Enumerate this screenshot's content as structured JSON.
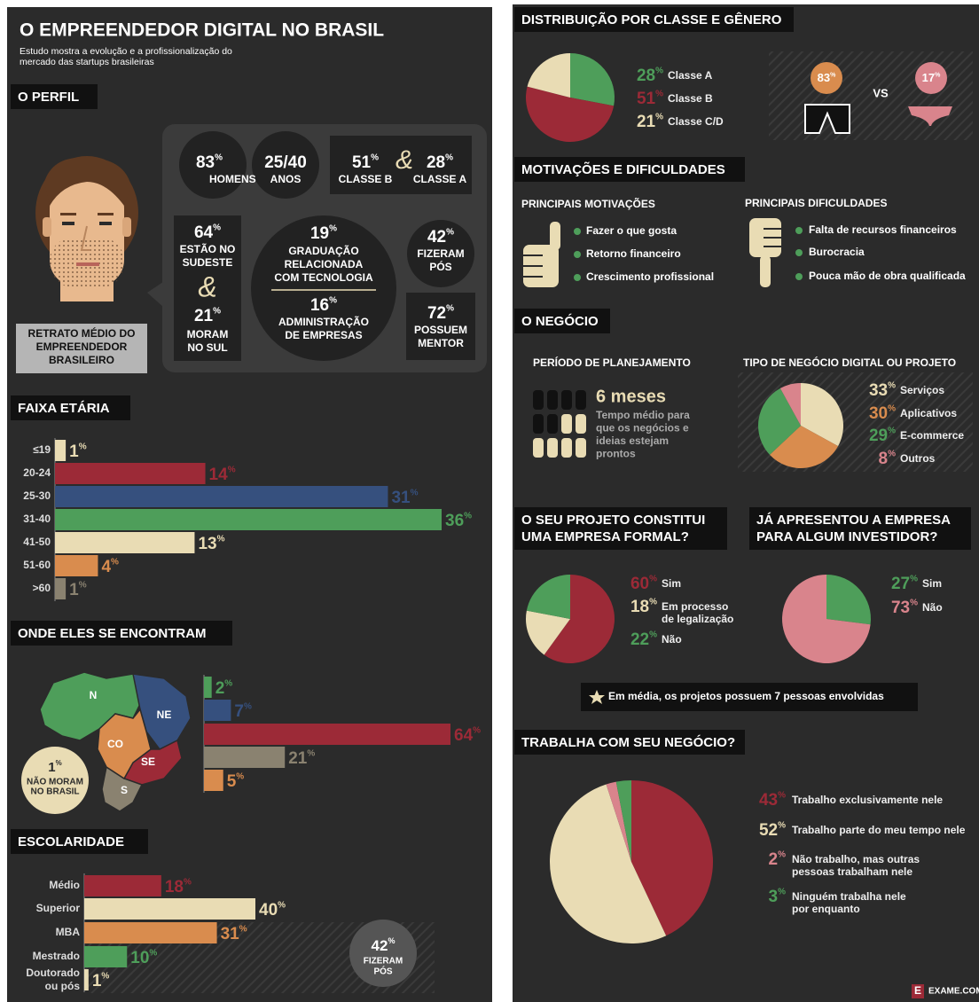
{
  "percent_sign": "%",
  "title": "O EMPREENDEDOR DIGITAL NO BRASIL",
  "subtitle": [
    "Estudo mostra a evolução e a profissionalização do",
    "mercado das startups brasileiras"
  ],
  "perfil": {
    "heading": "O PERFIL",
    "portrait_label": [
      "RETRATO MÉDIO DO",
      "EMPREENDEDOR",
      "BRASILEIRO"
    ],
    "ampersand": "&",
    "homens": {
      "value": 83,
      "label": "HOMENS"
    },
    "idade": {
      "value": "25/40",
      "label": "ANOS"
    },
    "classe": {
      "b": 51,
      "b_label": "CLASSE B",
      "a": 28,
      "a_label": "CLASSE A"
    },
    "sudeste": {
      "value": 64,
      "label": [
        "ESTÃO NO",
        "SUDESTE"
      ]
    },
    "sul": {
      "value": 21,
      "label": [
        "MORAM",
        "NO SUL"
      ]
    },
    "graduacao": {
      "tec": 19,
      "tec_label": [
        "GRADUAÇÃO",
        "RELACIONADA",
        "COM TECNOLOGIA"
      ],
      "adm": 16,
      "adm_label": [
        "ADMINISTRAÇÃO",
        "DE EMPRESAS"
      ]
    },
    "pos": {
      "value": 42,
      "label": [
        "FIZERAM",
        "PÓS"
      ]
    },
    "mentor": {
      "value": 72,
      "label": [
        "POSSUEM",
        "MENTOR"
      ]
    }
  },
  "faixa_etaria": {
    "heading": "FAIXA ETÁRIA",
    "type": "bar",
    "categories": [
      "≤19",
      "20-24",
      "25-30",
      "31-40",
      "41-50",
      "51-60",
      ">60"
    ],
    "values": [
      1,
      14,
      31,
      36,
      13,
      4,
      1
    ],
    "colors": [
      "#e9dcb4",
      "#9c2a37",
      "#36507e",
      "#4e9e5a",
      "#e9dcb4",
      "#d98c4e",
      "#8a8270"
    ]
  },
  "regioes": {
    "heading": "ONDE ELES SE ENCONTRAM",
    "type": "bar",
    "categories": [
      "N",
      "NE",
      "SE",
      "S",
      "CO"
    ],
    "values": [
      2,
      7,
      64,
      21,
      5
    ],
    "colors": [
      "#4e9e5a",
      "#36507e",
      "#9c2a37",
      "#8a8270",
      "#d98c4e"
    ],
    "exterior": {
      "value": 1,
      "label": [
        "NÃO MORAM",
        "NO BRASIL"
      ]
    }
  },
  "escolaridade": {
    "heading": "ESCOLARIDADE",
    "type": "bar",
    "categories": [
      "Médio",
      "Superior",
      "MBA",
      "Mestrado",
      [
        "Doutorado",
        "ou pós"
      ]
    ],
    "values": [
      18,
      40,
      31,
      10,
      1
    ],
    "colors": [
      "#9c2a37",
      "#e9dcb4",
      "#d98c4e",
      "#4e9e5a",
      "#e9dcb4"
    ]
  },
  "distribuicao": {
    "heading": "DISTRIBUIÇÃO POR CLASSE E GÊNERO",
    "type": "pie",
    "labels": [
      "Classe A",
      "Classe B",
      "Classe C/D"
    ],
    "values": [
      28,
      51,
      21
    ],
    "colors": [
      "#4e9e5a",
      "#9c2a37",
      "#e9dcb4"
    ],
    "genero": {
      "values": [
        83,
        17
      ],
      "colors": [
        "#d98c4e",
        "#d9848c"
      ],
      "vs": "VS"
    }
  },
  "motivacoes": {
    "heading": "MOTIVAÇÕES E DIFICULDADES",
    "motivacoes_title": "PRINCIPAIS MOTIVAÇÕES",
    "motivacoes": [
      "Fazer o que gosta",
      "Retorno financeiro",
      "Crescimento profissional"
    ],
    "dificuldades_title": "PRINCIPAIS DIFICULDADES",
    "dificuldades": [
      "Falta de recursos financeiros",
      "Burocracia",
      "Pouca mão de obra qualificada"
    ]
  },
  "negocio": {
    "heading": "O NEGÓCIO",
    "planejamento_title": "PERÍODO DE PLANEJAMENTO",
    "planejamento": "6 meses",
    "planejamento_text": [
      "Tempo médio para",
      "que os negócios e",
      "ideias estejam",
      "prontos"
    ],
    "tipo": {
      "title": "TIPO DE NEGÓCIO DIGITAL OU PROJETO",
      "type": "pie",
      "labels": [
        "Serviços",
        "Aplicativos",
        "E-commerce",
        "Outros"
      ],
      "values": [
        33,
        30,
        29,
        8
      ],
      "colors": [
        "#e9dcb4",
        "#d98c4e",
        "#4e9e5a",
        "#d9848c"
      ]
    }
  },
  "formal": {
    "heading": [
      "O SEU PROJETO CONSTITUI",
      "UMA EMPRESA FORMAL?"
    ],
    "type": "pie",
    "labels": [
      [
        "Sim"
      ],
      [
        "Em processo",
        "de legalização"
      ],
      [
        "Não"
      ]
    ],
    "values": [
      60,
      18,
      22
    ],
    "colors": [
      "#9c2a37",
      "#e9dcb4",
      "#4e9e5a"
    ]
  },
  "investidor": {
    "heading": [
      "JÁ APRESENTOU A EMPRESA",
      "PARA ALGUM INVESTIDOR?"
    ],
    "type": "pie",
    "labels": [
      "Sim",
      "Não"
    ],
    "values": [
      27,
      73
    ],
    "colors": [
      "#4e9e5a",
      "#d9848c"
    ]
  },
  "nota": "Em média, os projetos possuem 7 pessoas envolvidas",
  "trabalha": {
    "heading": "TRABALHA COM SEU NEGÓCIO?",
    "type": "pie",
    "labels": [
      [
        "Trabalho exclusivamente nele"
      ],
      [
        "Trabalho parte do meu tempo nele"
      ],
      [
        "Não trabalho, mas outras",
        "pessoas trabalham nele"
      ],
      [
        "Ninguém trabalha nele",
        "por enquanto"
      ]
    ],
    "values": [
      43,
      52,
      2,
      3
    ],
    "colors": [
      "#9c2a37",
      "#e9dcb4",
      "#d9848c",
      "#4e9e5a"
    ]
  },
  "footer": {
    "logo": "E",
    "brand": "EXAME.COM"
  }
}
